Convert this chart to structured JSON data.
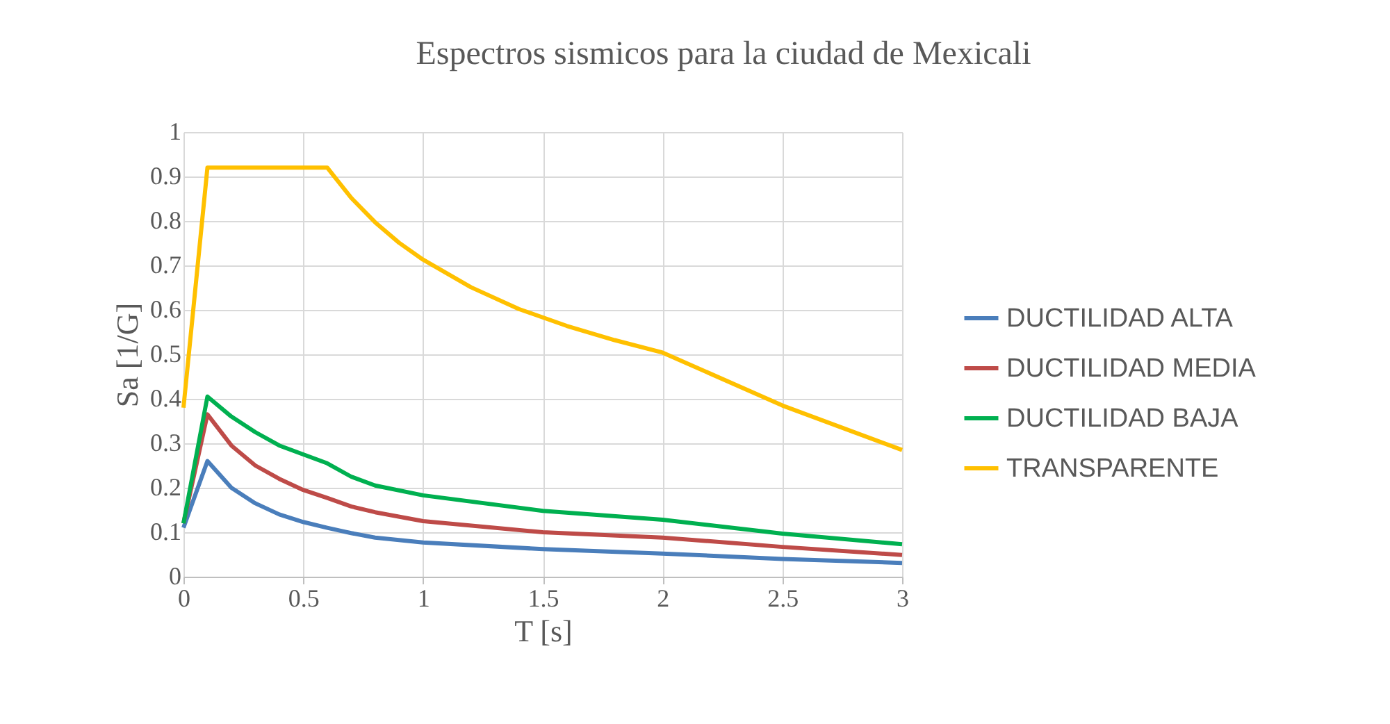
{
  "chart_data": {
    "type": "line",
    "title": "Espectros sismicos para la ciudad de Mexicali",
    "xlabel": "T [s]",
    "ylabel": "Sa [1/G]",
    "xlim": [
      0,
      3
    ],
    "xticks": [
      0,
      0.5,
      1,
      1.5,
      2,
      2.5,
      3
    ],
    "ylim": [
      0,
      1
    ],
    "yticks": [
      0,
      0.1,
      0.2,
      0.3,
      0.4,
      0.5,
      0.6,
      0.7,
      0.8,
      0.9,
      1
    ],
    "grid": true,
    "legend": "right",
    "marker": "none",
    "line_style": "solid",
    "series": [
      {
        "name": "DUCTILIDAD ALTA",
        "color": "#4a7ebb",
        "x": [
          0,
          0.1,
          0.2,
          0.3,
          0.4,
          0.5,
          0.6,
          0.7,
          0.8,
          1,
          1.5,
          2,
          2.5,
          3
        ],
        "values": [
          0.11,
          0.26,
          0.2,
          0.165,
          0.14,
          0.123,
          0.11,
          0.098,
          0.088,
          0.077,
          0.062,
          0.052,
          0.04,
          0.031
        ]
      },
      {
        "name": "DUCTILIDAD MEDIA",
        "color": "#be4b48",
        "x": [
          0,
          0.1,
          0.2,
          0.3,
          0.4,
          0.5,
          0.6,
          0.7,
          0.8,
          1,
          1.5,
          2,
          2.5,
          3
        ],
        "values": [
          0.12,
          0.365,
          0.295,
          0.25,
          0.22,
          0.195,
          0.177,
          0.158,
          0.145,
          0.125,
          0.1,
          0.088,
          0.067,
          0.049
        ]
      },
      {
        "name": "DUCTILIDAD BAJA",
        "color": "#00b050",
        "x": [
          0,
          0.1,
          0.2,
          0.3,
          0.4,
          0.5,
          0.6,
          0.7,
          0.8,
          1,
          1.5,
          2,
          2.5,
          3
        ],
        "values": [
          0.12,
          0.405,
          0.36,
          0.325,
          0.295,
          0.275,
          0.255,
          0.225,
          0.205,
          0.183,
          0.148,
          0.128,
          0.097,
          0.073
        ]
      },
      {
        "name": "TRANSPARENTE",
        "color": "#ffc000",
        "x": [
          0,
          0.1,
          0.6,
          0.7,
          0.8,
          0.9,
          1,
          1.2,
          1.4,
          1.6,
          1.8,
          2,
          2.5,
          3
        ],
        "values": [
          0.38,
          0.92,
          0.92,
          0.852,
          0.797,
          0.751,
          0.713,
          0.651,
          0.602,
          0.564,
          0.532,
          0.504,
          0.385,
          0.285
        ]
      }
    ]
  }
}
